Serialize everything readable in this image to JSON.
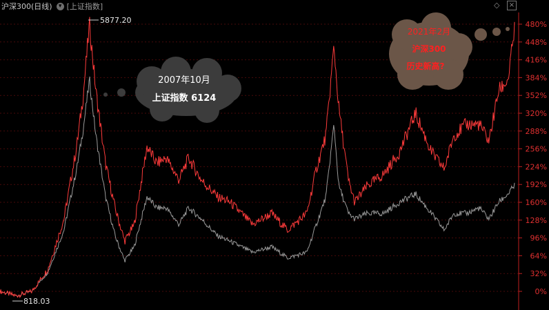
{
  "header": {
    "title": "沪深300(日线)",
    "dropdown_icon": "chevron-down-icon",
    "reference": "[上证指数]",
    "diamond_icon": "diamond-icon",
    "close_icon": "close-icon"
  },
  "colors": {
    "series_hs300": "#ff3b3b",
    "series_shanghai": "#9a9a9a",
    "axis": "#e03030",
    "grid": "#4a0a0a",
    "bubble_dark": "#3c3c3c",
    "bubble_brown": "#6b5648",
    "annotation_red": "#ff2020"
  },
  "annotations": {
    "max_label": "5877.20",
    "min_label": "818.03",
    "bubble_2007_line1": "2007年10月",
    "bubble_2007_line2": "上证指数 6124",
    "bubble_2021_line1": "2021年2月",
    "bubble_2021_line2": "沪深300",
    "bubble_2021_line3": "历史新高?"
  },
  "chart_data": {
    "type": "line",
    "title": "沪深300(日线)",
    "y_axis_unit": "%",
    "y_ticks": [
      "480%",
      "448%",
      "416%",
      "384%",
      "352%",
      "320%",
      "288%",
      "256%",
      "224%",
      "192%",
      "160%",
      "128%",
      "96%",
      "64%",
      "32%",
      "0%"
    ],
    "ylim": [
      0,
      480
    ],
    "series": [
      {
        "name": "沪深300(日线)",
        "x": [
          2005.0,
          2005.5,
          2006.0,
          2006.5,
          2007.0,
          2007.4,
          2007.6,
          2007.8,
          2008.0,
          2008.3,
          2008.6,
          2008.9,
          2009.2,
          2009.6,
          2009.9,
          2010.2,
          2010.6,
          2010.9,
          2011.3,
          2011.8,
          2012.2,
          2012.9,
          2013.5,
          2014.0,
          2014.6,
          2014.9,
          2015.2,
          2015.45,
          2015.6,
          2015.9,
          2016.1,
          2016.5,
          2017.0,
          2017.5,
          2018.0,
          2018.5,
          2018.9,
          2019.2,
          2019.6,
          2020.0,
          2020.3,
          2020.6,
          2020.9,
          2021.1
        ],
        "values": [
          0,
          -8,
          0,
          40,
          130,
          260,
          350,
          480,
          360,
          230,
          150,
          90,
          120,
          260,
          230,
          240,
          200,
          240,
          200,
          170,
          160,
          120,
          140,
          110,
          140,
          220,
          280,
          440,
          330,
          200,
          160,
          190,
          210,
          250,
          320,
          250,
          220,
          280,
          300,
          300,
          270,
          360,
          380,
          470
        ]
      },
      {
        "name": "上证指数",
        "x": [
          2005.0,
          2005.5,
          2006.0,
          2006.5,
          2007.0,
          2007.4,
          2007.6,
          2007.8,
          2008.0,
          2008.3,
          2008.6,
          2008.9,
          2009.2,
          2009.6,
          2009.9,
          2010.2,
          2010.6,
          2010.9,
          2011.3,
          2011.8,
          2012.2,
          2012.9,
          2013.5,
          2014.0,
          2014.6,
          2014.9,
          2015.2,
          2015.45,
          2015.6,
          2015.9,
          2016.1,
          2016.5,
          2017.0,
          2017.5,
          2018.0,
          2018.5,
          2018.9,
          2019.2,
          2019.6,
          2020.0,
          2020.3,
          2020.6,
          2020.9,
          2021.1
        ],
        "values": [
          0,
          -8,
          0,
          35,
          110,
          220,
          290,
          380,
          280,
          170,
          100,
          55,
          80,
          170,
          150,
          150,
          120,
          150,
          130,
          100,
          90,
          70,
          80,
          60,
          70,
          120,
          170,
          300,
          190,
          140,
          130,
          140,
          140,
          160,
          175,
          140,
          110,
          140,
          140,
          150,
          130,
          160,
          175,
          190
        ]
      }
    ],
    "grid": true,
    "legend": "none"
  }
}
